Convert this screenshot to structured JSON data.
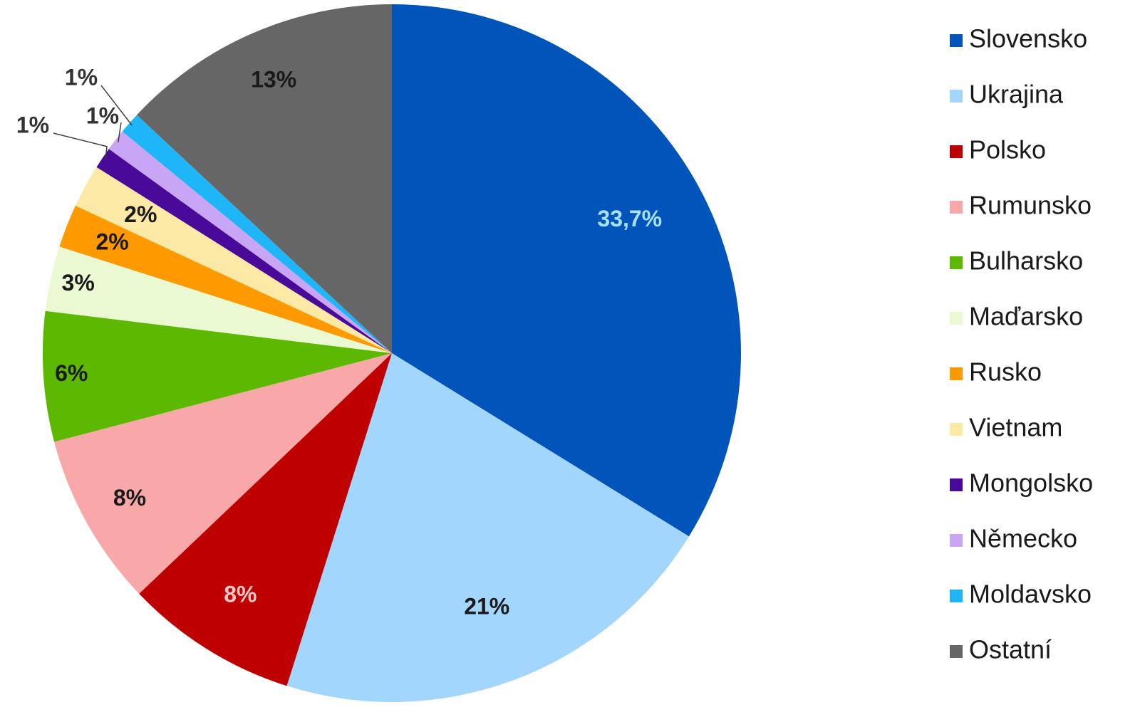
{
  "chart_data": {
    "type": "pie",
    "title": "",
    "start_angle_deg": 0,
    "direction": "clockwise",
    "legend_position": "right",
    "slices": [
      {
        "name": "Slovensko",
        "value": 33.7,
        "label": "33,7%",
        "color": "#0054BA",
        "label_color": "#A8E0FF"
      },
      {
        "name": "Ukrajina",
        "value": 21,
        "label": "21%",
        "color": "#A3D6FC",
        "label_color": "#1a1a1a"
      },
      {
        "name": "Polsko",
        "value": 8,
        "label": "8%",
        "color": "#BF0000",
        "label_color": "#FFC8C8"
      },
      {
        "name": "Rumunsko",
        "value": 8,
        "label": "8%",
        "color": "#F8A8A8",
        "label_color": "#1a1a1a"
      },
      {
        "name": "Bulharsko",
        "value": 6,
        "label": "6%",
        "color": "#5CB800",
        "label_color": "#1a1a1a"
      },
      {
        "name": "Maďarsko",
        "value": 3,
        "label": "3%",
        "color": "#EAF9D2",
        "label_color": "#1a1a1a"
      },
      {
        "name": "Rusko",
        "value": 2,
        "label": "2%",
        "color": "#FF9900",
        "label_color": "#1a1a1a"
      },
      {
        "name": "Vietnam",
        "value": 2,
        "label": "2%",
        "color": "#FCE9A6",
        "label_color": "#1a1a1a"
      },
      {
        "name": "Mongolsko",
        "value": 1,
        "label": "1%",
        "color": "#4A0A99",
        "label_color": "#333333"
      },
      {
        "name": "Německo",
        "value": 1,
        "label": "1%",
        "color": "#C8A6F5",
        "label_color": "#333333"
      },
      {
        "name": "Moldavsko",
        "value": 1,
        "label": "1%",
        "color": "#1EB6F6",
        "label_color": "#333333"
      },
      {
        "name": "Ostatní",
        "value": 13,
        "label": "13%",
        "color": "#666666",
        "label_color": "#1a1a1a"
      }
    ]
  }
}
